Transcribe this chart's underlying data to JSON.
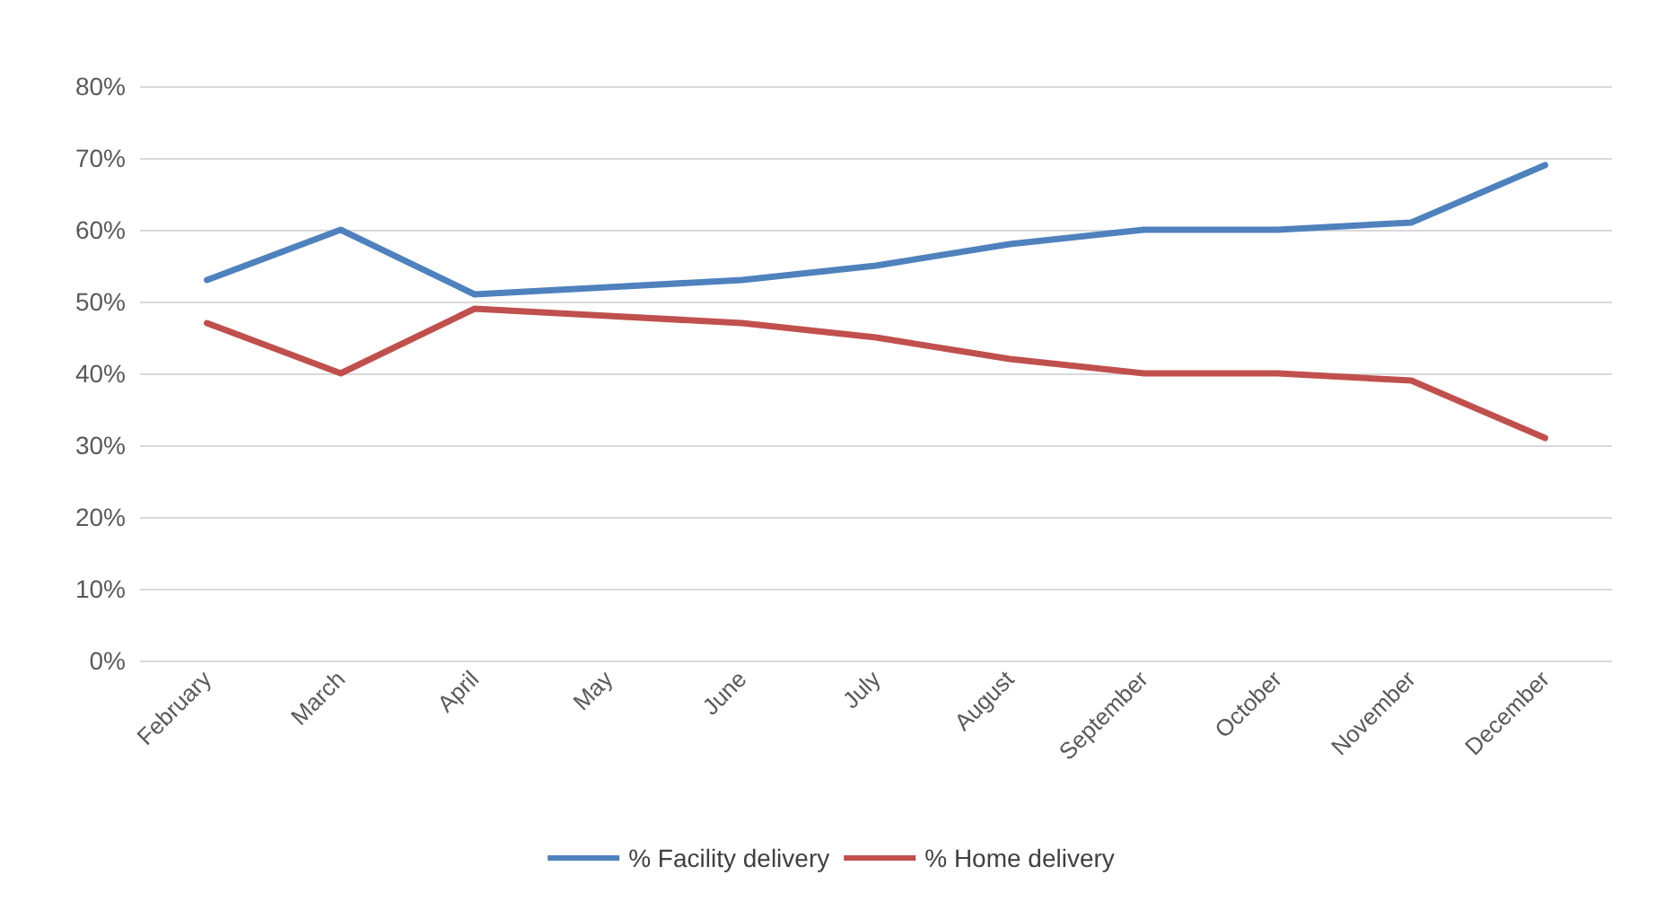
{
  "chart_data": {
    "type": "line",
    "categories": [
      "February",
      "March",
      "April",
      "May",
      "June",
      "July",
      "August",
      "September",
      "October",
      "November",
      "December"
    ],
    "series": [
      {
        "name": "% Facility delivery",
        "color": "#4f81bd",
        "values": [
          53,
          60,
          51,
          52,
          53,
          55,
          58,
          60,
          60,
          61,
          69
        ]
      },
      {
        "name": "% Home delivery",
        "color": "#c0504d",
        "values": [
          47,
          40,
          49,
          48,
          47,
          45,
          42,
          40,
          40,
          39,
          31
        ]
      }
    ],
    "ylim": [
      0,
      80
    ],
    "yticks": [
      {
        "value": 0,
        "label": "0%"
      },
      {
        "value": 10,
        "label": "10%"
      },
      {
        "value": 20,
        "label": "20%"
      },
      {
        "value": 30,
        "label": "30%"
      },
      {
        "value": 40,
        "label": "40%"
      },
      {
        "value": 50,
        "label": "50%"
      },
      {
        "value": 60,
        "label": "60%"
      },
      {
        "value": 70,
        "label": "70%"
      },
      {
        "value": 80,
        "label": "80%"
      }
    ],
    "grid": "y",
    "legend": "bottom",
    "marker": "none",
    "line_style": "solid"
  }
}
